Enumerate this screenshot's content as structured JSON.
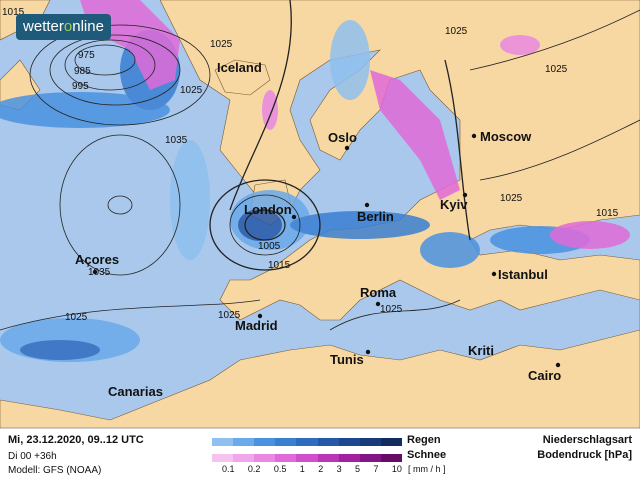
{
  "logo": {
    "text_a": "wetter",
    "text_b": "o",
    "text_c": "nline"
  },
  "cities": [
    {
      "name": "Iceland",
      "dot": false
    },
    {
      "name": "Oslo",
      "dot": true
    },
    {
      "name": "Moscow",
      "dot": true
    },
    {
      "name": "London",
      "dot": true
    },
    {
      "name": "Berlin",
      "dot": true
    },
    {
      "name": "Kyiv",
      "dot": true
    },
    {
      "name": "Açores",
      "dot": true
    },
    {
      "name": "Istanbul",
      "dot": true
    },
    {
      "name": "Roma",
      "dot": true
    },
    {
      "name": "Madrid",
      "dot": true
    },
    {
      "name": "Tunis",
      "dot": true
    },
    {
      "name": "Kriti",
      "dot": false
    },
    {
      "name": "Cairo",
      "dot": true
    },
    {
      "name": "Canarias",
      "dot": false
    }
  ],
  "isobar_labels": [
    "1015",
    "975",
    "985",
    "995",
    "1025",
    "1025",
    "1035",
    "1005",
    "1015",
    "1035",
    "1025",
    "1025",
    "1025",
    "1025",
    "1015",
    "1025",
    "1025"
  ],
  "footer": {
    "datetime": "Mi, 23.12.2020, 09..12 UTC",
    "run": "Di 00 +36h",
    "model": "Modell: GFS (NOAA)",
    "legend_rain": "Regen",
    "legend_snow": "Schnee",
    "ticks": [
      "0.1",
      "0.2",
      "0.5",
      "1",
      "2",
      "3",
      "5",
      "7",
      "10"
    ],
    "unit": "[ mm / h ]",
    "title1": "Niederschlagsart",
    "title2": "Bodendruck [hPa]"
  },
  "colors": {
    "ocean": "#a9c8ec",
    "land": "#f7d7a2",
    "rain": [
      "#8fc0ee",
      "#6aa9ea",
      "#4a92e0",
      "#3a7fd2",
      "#2f6cc0",
      "#2658a8",
      "#1d4890",
      "#173a78",
      "#112c5e"
    ],
    "snow": [
      "#f6c2f0",
      "#f0a6ea",
      "#ea88e2",
      "#e06ad8",
      "#d24fcb",
      "#bb36b7",
      "#a0229f",
      "#831585",
      "#650c66"
    ]
  }
}
